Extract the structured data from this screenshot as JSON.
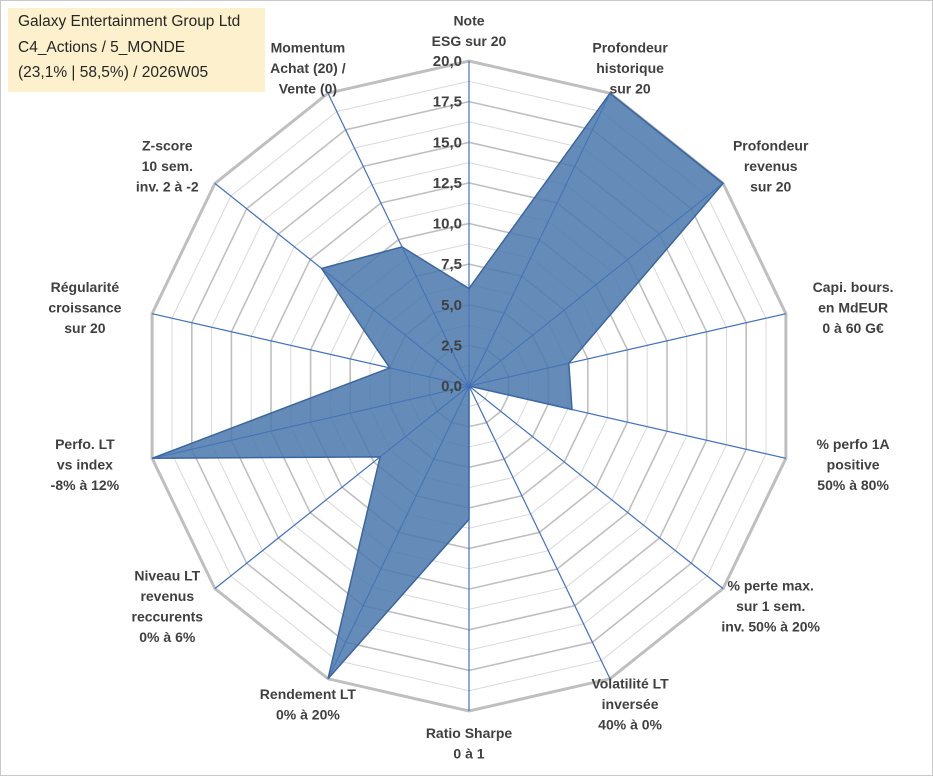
{
  "info": {
    "company": "Galaxy Entertainment Group Ltd",
    "category": "C4_Actions / 5_MONDE",
    "stats": "(23,1% | 58,5%) / 2026W05"
  },
  "colors": {
    "fill": "#4a78ad",
    "stroke": "#3a66a0",
    "axis": "#4472c4",
    "grid": "#bfbfbf",
    "grid_minor": "#d9d9d9",
    "text": "#404040"
  },
  "chart_data": {
    "type": "radar",
    "title": "",
    "rmax": 20,
    "ticks": [
      "0,0",
      "2,5",
      "5,0",
      "7,5",
      "10,0",
      "12,5",
      "15,0",
      "17,5",
      "20,0"
    ],
    "tick_values": [
      0,
      2.5,
      5,
      7.5,
      10,
      12.5,
      15,
      17.5,
      20
    ],
    "minor_step": 1.25,
    "categories": [
      [
        "Note",
        "ESG sur 20"
      ],
      [
        "Profondeur",
        "historique",
        "sur 20"
      ],
      [
        "Profondeur",
        "revenus",
        "sur 20"
      ],
      [
        "Capi. bours.",
        "en MdEUR",
        "0 à 60 G€"
      ],
      [
        "% perfo 1A",
        "positive",
        "50% à 80%"
      ],
      [
        "% perte max.",
        "sur 1 sem.",
        "inv. 50% à 20%"
      ],
      [
        "Volatilité LT",
        "inversée",
        "40% à 0%"
      ],
      [
        "Ratio Sharpe",
        "0 à 1"
      ],
      [
        "Rendement LT",
        "0% à 20%"
      ],
      [
        "Niveau LT",
        "revenus",
        "reccurents",
        "0% à 6%"
      ],
      [
        "Perfo. LT",
        "vs index",
        "-8% à 12%"
      ],
      [
        "Régularité",
        "croissance",
        "sur 20"
      ],
      [
        "Z-score",
        "10 sem.",
        "inv. 2 à -2"
      ],
      [
        "Momentum",
        "Achat (20) /",
        "Vente (0)"
      ]
    ],
    "series": [
      {
        "name": "Galaxy Entertainment Group Ltd",
        "values": [
          6.0,
          20.0,
          20.0,
          6.3,
          6.5,
          0.0,
          0.0,
          8.2,
          20.0,
          7.0,
          20.0,
          5.0,
          11.6,
          9.5
        ]
      }
    ]
  }
}
